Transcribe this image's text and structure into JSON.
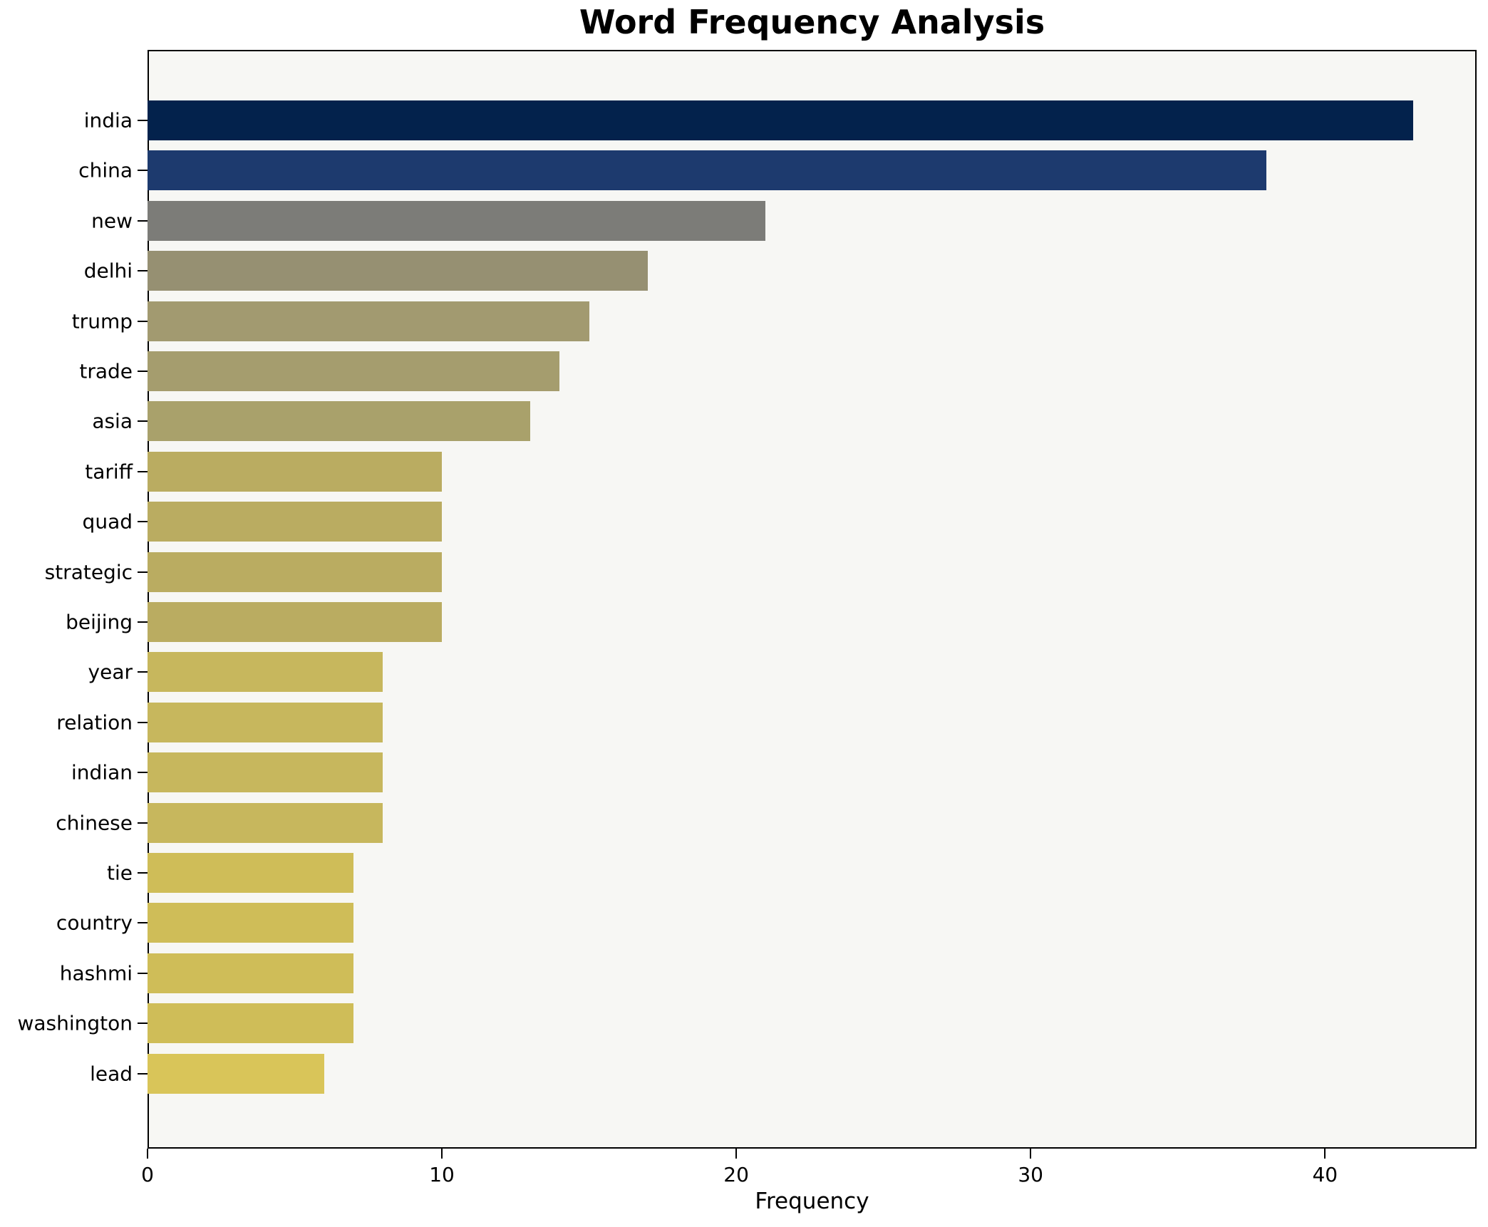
{
  "chart_data": {
    "type": "bar",
    "orientation": "horizontal",
    "title": "Word Frequency Analysis",
    "xlabel": "Frequency",
    "ylabel": "",
    "categories": [
      "india",
      "china",
      "new",
      "delhi",
      "trump",
      "trade",
      "asia",
      "tariff",
      "quad",
      "strategic",
      "beijing",
      "year",
      "relation",
      "indian",
      "chinese",
      "tie",
      "country",
      "hashmi",
      "washington",
      "lead"
    ],
    "values": [
      43,
      38,
      21,
      17,
      15,
      14,
      13,
      10,
      10,
      10,
      10,
      8,
      8,
      8,
      8,
      7,
      7,
      7,
      7,
      6
    ],
    "bar_colors": [
      "#03224c",
      "#1d3a6e",
      "#7c7c78",
      "#969072",
      "#a29a70",
      "#a59d6e",
      "#a9a16b",
      "#baac61",
      "#baac61",
      "#baac61",
      "#baac61",
      "#c7b75d",
      "#c7b75d",
      "#c7b75d",
      "#c7b75d",
      "#cfbd58",
      "#cfbd58",
      "#cfbd58",
      "#cfbd58",
      "#d9c559"
    ],
    "x_ticks": [
      0,
      10,
      20,
      30,
      40
    ],
    "xlim": [
      0,
      45.15
    ],
    "grid": false,
    "legend": null,
    "plot_background": "#f7f7f4",
    "figure_background": "#ffffff",
    "spine_color": "#000000",
    "text_color": "#000000"
  }
}
